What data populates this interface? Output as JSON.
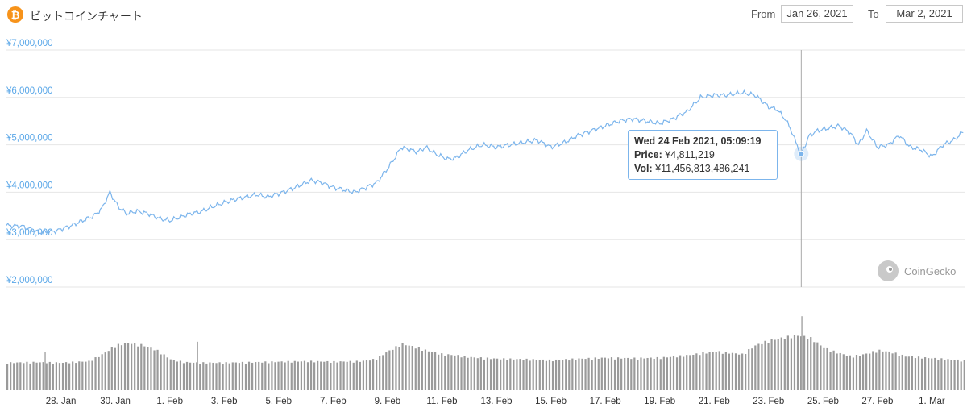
{
  "header": {
    "icon": "bitcoin-icon",
    "title": "ビットコインチャート",
    "from_label": "From",
    "from_value": "Jan 26, 2021",
    "to_label": "To",
    "to_value": "Mar 2, 2021"
  },
  "brand": {
    "icon": "coingecko-icon",
    "name": "CoinGecko"
  },
  "tooltip": {
    "date": "Wed 24 Feb 2021, 05:09:19",
    "price_label": "Price:",
    "price_value": "¥4,811,219",
    "vol_label": "Vol:",
    "vol_value": "¥11,456,813,486,241"
  },
  "colors": {
    "line": "#7cb5ec",
    "volume": "#9a9a9a",
    "axis_label": "#5aa7e8",
    "grid": "#e6e6e6",
    "accent_orange": "#f7931a"
  },
  "chart_data": {
    "type": "line",
    "title": "",
    "ylabel": "",
    "ylim": [
      2000000,
      7000000
    ],
    "y_ticks": [
      "¥2,000,000",
      "¥3,000,000",
      "¥4,000,000",
      "¥5,000,000",
      "¥6,000,000",
      "¥7,000,000"
    ],
    "y_tick_values": [
      2000000,
      3000000,
      4000000,
      5000000,
      6000000,
      7000000
    ],
    "x_ticks": [
      "28. Jan",
      "30. Jan",
      "1. Feb",
      "3. Feb",
      "5. Feb",
      "7. Feb",
      "9. Feb",
      "11. Feb",
      "13. Feb",
      "15. Feb",
      "17. Feb",
      "19. Feb",
      "21. Feb",
      "23. Feb",
      "25. Feb",
      "27. Feb",
      "1. Mar"
    ],
    "x_tick_days": [
      2,
      4,
      6,
      8,
      10,
      12,
      14,
      16,
      18,
      20,
      22,
      24,
      26,
      28,
      30,
      32,
      34
    ],
    "grid": true,
    "crosshair_day": 29.2,
    "series": [
      {
        "role": "price",
        "x_days": [
          0,
          0.6,
          1.2,
          1.8,
          2.4,
          3.0,
          3.2,
          3.5,
          3.8,
          4.1,
          4.4,
          4.8,
          5.2,
          5.6,
          6.0,
          6.4,
          6.8,
          7.2,
          7.6,
          8.0,
          8.4,
          8.8,
          9.2,
          9.6,
          10.0,
          10.4,
          10.8,
          11.2,
          11.6,
          12.0,
          12.4,
          12.8,
          13.2,
          13.6,
          14.0,
          14.3,
          14.5,
          14.8,
          15.1,
          15.4,
          15.8,
          16.2,
          16.5,
          17.0,
          17.5,
          18.0,
          18.5,
          19.0,
          19.5,
          20.0,
          20.5,
          21.0,
          21.5,
          22.0,
          22.5,
          23.0,
          23.5,
          24.0,
          24.5,
          25.0,
          25.5,
          26.0,
          26.5,
          27.0,
          27.5,
          28.0,
          28.3,
          28.6,
          28.8,
          29.0,
          29.2,
          29.5,
          29.8,
          30.2,
          30.6,
          31.0,
          31.3,
          31.6,
          32.0,
          32.4,
          32.8,
          33.2,
          33.6,
          34.0,
          34.4,
          34.8,
          35.2
        ],
        "values": [
          3300000,
          3280000,
          3150000,
          3180000,
          3300000,
          3450000,
          3500000,
          3650000,
          4000000,
          3700000,
          3550000,
          3600000,
          3550000,
          3450000,
          3400000,
          3480000,
          3550000,
          3600000,
          3700000,
          3780000,
          3850000,
          3900000,
          3950000,
          3900000,
          3970000,
          4050000,
          4150000,
          4250000,
          4200000,
          4100000,
          4050000,
          4000000,
          4100000,
          4200000,
          4500000,
          4750000,
          4950000,
          4900000,
          4850000,
          4950000,
          4800000,
          4700000,
          4720000,
          4900000,
          5000000,
          4950000,
          5000000,
          5050000,
          5100000,
          4950000,
          5050000,
          5200000,
          5300000,
          5400000,
          5500000,
          5550000,
          5500000,
          5450000,
          5550000,
          5700000,
          6000000,
          6050000,
          6050000,
          6100000,
          6050000,
          5800000,
          5750000,
          5550000,
          5350000,
          5050000,
          4811219,
          5200000,
          5300000,
          5350000,
          5400000,
          5250000,
          5000000,
          5300000,
          4950000,
          5000000,
          5200000,
          4950000,
          4900000,
          4750000,
          5000000,
          5100000,
          5300000
        ]
      },
      {
        "role": "volume",
        "x_days": [
          0,
          1,
          2,
          3,
          3.5,
          4,
          4.5,
          5,
          5.5,
          6,
          6.5,
          7,
          8,
          9,
          10,
          11,
          12,
          13,
          13.5,
          14,
          14.5,
          15,
          15.5,
          16,
          16.5,
          17,
          18,
          19,
          20,
          21,
          22,
          23,
          24,
          25,
          26,
          26.5,
          27,
          27.5,
          28,
          28.5,
          29,
          29.5,
          30,
          30.5,
          31,
          31.5,
          32,
          32.5,
          33,
          34,
          35
        ],
        "values": [
          0.55,
          0.56,
          0.55,
          0.58,
          0.72,
          0.9,
          0.95,
          0.9,
          0.8,
          0.62,
          0.56,
          0.55,
          0.55,
          0.56,
          0.57,
          0.58,
          0.57,
          0.58,
          0.62,
          0.78,
          0.93,
          0.86,
          0.78,
          0.72,
          0.7,
          0.66,
          0.63,
          0.62,
          0.6,
          0.63,
          0.65,
          0.64,
          0.65,
          0.7,
          0.78,
          0.75,
          0.72,
          0.9,
          1.0,
          1.05,
          1.1,
          1.05,
          0.85,
          0.75,
          0.68,
          0.72,
          0.8,
          0.76,
          0.68,
          0.64,
          0.6
        ]
      }
    ],
    "spikes": [
      {
        "day": 1.4,
        "value": 0.75
      },
      {
        "day": 7.0,
        "value": 0.95
      },
      {
        "day": 29.2,
        "value": 1.45
      }
    ]
  }
}
